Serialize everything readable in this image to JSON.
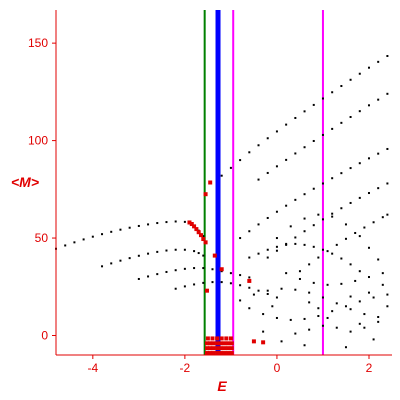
{
  "chart_data": {
    "type": "scatter",
    "xlabel": "E",
    "ylabel": "<M>",
    "xlim": [
      -4.8,
      2.5
    ],
    "ylim": [
      -10,
      167
    ],
    "x_ticks": [
      -4,
      -2,
      0,
      2
    ],
    "y_ticks": [
      0,
      50,
      100,
      150
    ],
    "grid": false,
    "colors": {
      "axes": "#e00000",
      "black_points": "#000000",
      "red_points": "#e00000",
      "green_line": "#008000",
      "blue_line": "#0000ff",
      "magenta_line": "#ff00ff"
    },
    "vertical_lines": [
      {
        "x": -1.57,
        "color": "#008000",
        "width": 2
      },
      {
        "x": -1.28,
        "color": "#0000ff",
        "width": 5
      },
      {
        "x": -0.95,
        "color": "#ff00ff",
        "width": 2
      },
      {
        "x": 1.0,
        "color": "#ff00ff",
        "width": 2
      }
    ],
    "series": [
      {
        "values": [
          [
            -4.8,
            44.5
          ],
          [
            -4.6,
            46.2
          ],
          [
            -4.4,
            47.8
          ],
          [
            -4.2,
            49.3
          ],
          [
            -4.0,
            50.7
          ],
          [
            -3.8,
            52.0
          ],
          [
            -3.6,
            53.2
          ],
          [
            -3.4,
            54.3
          ],
          [
            -3.2,
            55.3
          ],
          [
            -3.0,
            56.2
          ],
          [
            -2.8,
            57.0
          ],
          [
            -2.6,
            57.7
          ],
          [
            -2.4,
            58.2
          ],
          [
            -2.2,
            58.5
          ],
          [
            -2.0,
            58.3
          ],
          [
            -1.9,
            57.5
          ],
          [
            -1.8,
            56.0
          ],
          [
            -1.7,
            53.8
          ],
          [
            -1.6,
            51.0
          ],
          [
            -3.8,
            35.5
          ],
          [
            -3.6,
            37.0
          ],
          [
            -3.4,
            38.4
          ],
          [
            -3.2,
            39.7
          ],
          [
            -3.0,
            40.9
          ],
          [
            -2.8,
            42.0
          ],
          [
            -2.6,
            42.9
          ],
          [
            -2.4,
            43.6
          ],
          [
            -2.2,
            44.0
          ],
          [
            -2.0,
            44.0
          ],
          [
            -1.8,
            43.3
          ],
          [
            -1.7,
            42.3
          ],
          [
            -1.6,
            41.0
          ],
          [
            -3.0,
            29.0
          ],
          [
            -2.8,
            30.3
          ],
          [
            -2.6,
            31.5
          ],
          [
            -2.4,
            32.6
          ],
          [
            -2.2,
            33.5
          ],
          [
            -2.0,
            34.2
          ],
          [
            -1.8,
            34.6
          ],
          [
            -1.6,
            34.6
          ],
          [
            -1.4,
            34.0
          ],
          [
            -1.2,
            33.0
          ],
          [
            -1.0,
            32.0
          ],
          [
            -0.8,
            31.0
          ],
          [
            -0.6,
            29.8
          ],
          [
            -2.2,
            24.0
          ],
          [
            -2.0,
            25.2
          ],
          [
            -1.8,
            26.2
          ],
          [
            -1.6,
            27.0
          ],
          [
            -1.4,
            27.4
          ],
          [
            -1.2,
            27.4
          ],
          [
            -1.0,
            26.8
          ],
          [
            -0.8,
            25.8
          ],
          [
            -0.6,
            24.5
          ],
          [
            -0.4,
            23.0
          ],
          [
            -0.2,
            21.3
          ],
          [
            0.0,
            19.5
          ],
          [
            -1.2,
            82
          ],
          [
            -1.0,
            86
          ],
          [
            -0.8,
            90
          ],
          [
            -0.6,
            94
          ],
          [
            -0.4,
            97.6
          ],
          [
            -0.2,
            101.2
          ],
          [
            0.0,
            104.7
          ],
          [
            0.2,
            108.2
          ],
          [
            0.4,
            111.6
          ],
          [
            0.6,
            115.0
          ],
          [
            0.8,
            118.3
          ],
          [
            1.0,
            121.6
          ],
          [
            1.2,
            124.8
          ],
          [
            1.4,
            128.0
          ],
          [
            1.6,
            131.2
          ],
          [
            1.8,
            134.3
          ],
          [
            2.0,
            137.4
          ],
          [
            2.2,
            140.4
          ],
          [
            2.4,
            143.4
          ],
          [
            -0.4,
            80
          ],
          [
            -0.2,
            83.4
          ],
          [
            0.0,
            86.8
          ],
          [
            0.2,
            90.1
          ],
          [
            0.4,
            93.4
          ],
          [
            0.6,
            96.6
          ],
          [
            0.8,
            99.8
          ],
          [
            1.0,
            102.9
          ],
          [
            1.2,
            106.0
          ],
          [
            1.4,
            109.1
          ],
          [
            1.6,
            112.1
          ],
          [
            1.8,
            115.1
          ],
          [
            2.0,
            118.1
          ],
          [
            2.2,
            121.0
          ],
          [
            2.4,
            124.0
          ],
          [
            -0.8,
            50
          ],
          [
            -0.6,
            53.5
          ],
          [
            -0.4,
            57.0
          ],
          [
            -0.2,
            60.3
          ],
          [
            0.0,
            63.5
          ],
          [
            0.2,
            66.6
          ],
          [
            0.4,
            69.6
          ],
          [
            0.6,
            72.5
          ],
          [
            0.8,
            75.3
          ],
          [
            1.0,
            78.0
          ],
          [
            1.2,
            80.7
          ],
          [
            1.4,
            83.3
          ],
          [
            1.6,
            85.9
          ],
          [
            1.8,
            88.4
          ],
          [
            2.0,
            90.9
          ],
          [
            2.2,
            93.3
          ],
          [
            2.4,
            95.7
          ],
          [
            -0.2,
            40
          ],
          [
            0.0,
            43.5
          ],
          [
            0.2,
            47.0
          ],
          [
            0.4,
            50.3
          ],
          [
            0.6,
            53.5
          ],
          [
            0.8,
            56.6
          ],
          [
            1.0,
            59.6
          ],
          [
            1.2,
            62.5
          ],
          [
            1.4,
            65.3
          ],
          [
            1.6,
            68.0
          ],
          [
            1.8,
            70.6
          ],
          [
            2.0,
            73.1
          ],
          [
            2.2,
            75.6
          ],
          [
            2.4,
            78.0
          ],
          [
            0.5,
            33
          ],
          [
            0.7,
            36.5
          ],
          [
            0.9,
            40.0
          ],
          [
            1.1,
            43.3
          ],
          [
            1.3,
            46.5
          ],
          [
            1.5,
            49.6
          ],
          [
            1.7,
            52.6
          ],
          [
            1.9,
            55.4
          ],
          [
            2.1,
            58.1
          ],
          [
            2.3,
            60.7
          ],
          [
            2.4,
            62.0
          ],
          [
            -0.6,
            40
          ],
          [
            -0.4,
            42
          ],
          [
            -0.2,
            44
          ],
          [
            0.0,
            45.5
          ],
          [
            0.2,
            46.5
          ],
          [
            0.4,
            47.0
          ],
          [
            0.6,
            46.5
          ],
          [
            0.8,
            45.5
          ],
          [
            1.0,
            44
          ],
          [
            1.2,
            42
          ],
          [
            1.4,
            39.5
          ],
          [
            1.6,
            36.5
          ],
          [
            1.8,
            33.0
          ],
          [
            0.0,
            50
          ],
          [
            0.3,
            56
          ],
          [
            0.6,
            60
          ],
          [
            0.9,
            62
          ],
          [
            1.2,
            61
          ],
          [
            1.5,
            57
          ],
          [
            1.8,
            51
          ],
          [
            2.0,
            45
          ],
          [
            2.2,
            39
          ],
          [
            -0.8,
            18
          ],
          [
            -0.5,
            21
          ],
          [
            -0.2,
            23
          ],
          [
            0.1,
            24
          ],
          [
            0.4,
            23.5
          ],
          [
            0.7,
            22
          ],
          [
            1.0,
            19.5
          ],
          [
            1.3,
            16.5
          ],
          [
            1.6,
            13.5
          ],
          [
            1.9,
            11
          ],
          [
            2.2,
            9.5
          ],
          [
            -0.6,
            14
          ],
          [
            -0.3,
            11
          ],
          [
            0.0,
            9
          ],
          [
            0.3,
            8
          ],
          [
            0.6,
            8.5
          ],
          [
            0.9,
            10
          ],
          [
            1.2,
            12.5
          ],
          [
            1.5,
            15
          ],
          [
            1.8,
            17.5
          ],
          [
            2.1,
            19.5
          ],
          [
            2.4,
            21
          ],
          [
            0.2,
            32
          ],
          [
            0.5,
            29
          ],
          [
            0.8,
            27
          ],
          [
            1.1,
            26
          ],
          [
            1.4,
            26.5
          ],
          [
            1.7,
            28
          ],
          [
            2.0,
            30
          ],
          [
            2.3,
            32
          ],
          [
            0.4,
            1
          ],
          [
            0.7,
            3
          ],
          [
            1.0,
            5
          ],
          [
            1.3,
            4
          ],
          [
            1.6,
            2
          ],
          [
            1.9,
            4
          ],
          [
            2.2,
            7
          ],
          [
            0.1,
            -3
          ],
          [
            1.5,
            -6
          ],
          [
            2.1,
            -2
          ],
          [
            0.6,
            -5
          ],
          [
            -0.3,
            2
          ],
          [
            0.9,
            14
          ],
          [
            1.8,
            6
          ],
          [
            2.4,
            15
          ],
          [
            0.7,
            17
          ],
          [
            1.1,
            9
          ],
          [
            -0.1,
            15
          ],
          [
            2.3,
            26
          ],
          [
            2.0,
            22
          ],
          [
            1.6,
            20
          ]
        ]
      },
      {
        "values": [
          [
            -1.9,
            58.0
          ],
          [
            -1.85,
            57.2
          ],
          [
            -1.8,
            56.0
          ],
          [
            -1.75,
            54.6
          ],
          [
            -1.7,
            53.0
          ],
          [
            -1.65,
            51.5
          ],
          [
            -1.6,
            49.5
          ],
          [
            -1.55,
            47.8
          ],
          [
            -1.45,
            78.5
          ],
          [
            -1.55,
            72.5
          ],
          [
            -1.52,
            23.0
          ],
          [
            -1.35,
            41.0
          ],
          [
            -1.2,
            34.0
          ],
          [
            -0.6,
            28.0
          ],
          [
            -0.3,
            -3.5
          ],
          [
            -0.5,
            -3.0
          ],
          [
            -1.52,
            -4.0
          ],
          [
            -1.45,
            -4.0
          ],
          [
            -1.38,
            -4.0
          ],
          [
            -1.3,
            -4.0
          ],
          [
            -1.22,
            -4.0
          ],
          [
            -1.14,
            -4.0
          ],
          [
            -1.06,
            -4.0
          ],
          [
            -0.98,
            -4.0
          ],
          [
            -1.52,
            -6.5
          ],
          [
            -1.45,
            -6.5
          ],
          [
            -1.38,
            -6.5
          ],
          [
            -1.3,
            -6.5
          ],
          [
            -1.22,
            -6.5
          ],
          [
            -1.14,
            -6.5
          ],
          [
            -1.06,
            -6.5
          ],
          [
            -0.98,
            -6.5
          ],
          [
            -1.52,
            -9.0
          ],
          [
            -1.45,
            -9.0
          ],
          [
            -1.38,
            -9.0
          ],
          [
            -1.3,
            -9.0
          ],
          [
            -1.22,
            -9.0
          ],
          [
            -1.14,
            -9.0
          ],
          [
            -1.06,
            -9.0
          ],
          [
            -0.98,
            -9.0
          ],
          [
            -1.5,
            -1.5
          ],
          [
            -1.4,
            -1.5
          ],
          [
            -1.3,
            -1.5
          ],
          [
            -1.2,
            -1.5
          ],
          [
            -1.1,
            -1.5
          ],
          [
            -1.0,
            -1.5
          ]
        ]
      }
    ]
  }
}
